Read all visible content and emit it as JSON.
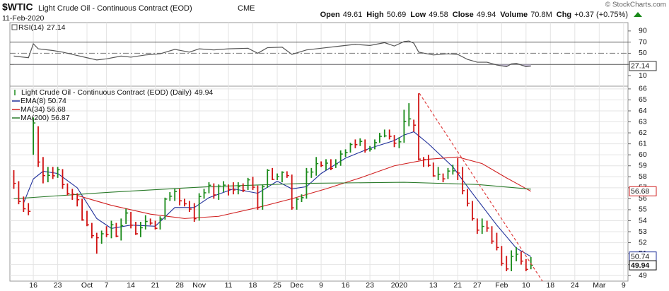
{
  "header": {
    "symbol": "$WTIC",
    "name": "Light Crude Oil - Continuous Contract (EOD)",
    "exchange": "CME",
    "date": "11-Feb-2020",
    "copyright": "© StockCharts.com",
    "quote": [
      {
        "label": "Open",
        "value": 49.61
      },
      {
        "label": "High",
        "value": 50.69
      },
      {
        "label": "Low",
        "value": 49.58
      },
      {
        "label": "Close",
        "value": 49.94
      },
      {
        "label": "Volume",
        "value": "70.8M"
      },
      {
        "label": "Chg",
        "value": "+0.37 (+0.75%)"
      }
    ]
  },
  "chart_data": [
    {
      "type": "line",
      "xlim": [
        -0.8,
        125.9
      ],
      "ylim": [
        -9,
        105
      ],
      "yticks": [
        90,
        70,
        50,
        30,
        10
      ],
      "solid_levels": [
        70,
        30
      ],
      "mid_level": 50,
      "oversold": 30,
      "shade_color": "#c8bfd8",
      "series": [
        {
          "name": "RSI(14)",
          "color": "#555555",
          "axis_label": true,
          "x": [
            0,
            3,
            4,
            5,
            8,
            10,
            13,
            15,
            17,
            19,
            22,
            24,
            27,
            30,
            33,
            36,
            38,
            41,
            44,
            48,
            50,
            52,
            55,
            57,
            60,
            63,
            67,
            70,
            73,
            76,
            78,
            80,
            81,
            82,
            83,
            86,
            89,
            91,
            93,
            95,
            97,
            99,
            101,
            102,
            103,
            104,
            105,
            106
          ],
          "values": [
            45,
            42,
            67,
            58,
            55,
            52,
            46,
            42,
            38,
            40,
            45,
            43,
            47,
            49,
            57,
            52,
            58,
            56,
            58,
            59,
            50,
            60,
            61,
            48,
            56,
            59,
            63,
            66,
            64,
            69,
            63,
            71,
            72,
            68,
            52,
            47,
            49,
            48,
            39,
            34,
            34,
            29,
            26,
            31,
            32,
            29,
            26,
            27.14
          ]
        }
      ]
    },
    {
      "type": "ohlc",
      "title": "Light Crude Oil - Continuous Contract (EOD) (Daily)",
      "xlim": [
        -0.8,
        125.9
      ],
      "ylim": [
        48.5,
        66.25
      ],
      "grid": true,
      "up_color": "#1a8a1a",
      "down_color": "#d01010",
      "yticks": [
        66,
        65,
        64,
        63,
        62,
        61,
        60,
        59,
        58,
        57,
        56,
        55,
        54,
        53,
        52,
        51,
        50,
        49
      ],
      "xticks": [
        {
          "value": 4,
          "label": "16"
        },
        {
          "value": 9,
          "label": "23"
        },
        {
          "value": 15,
          "label": "Oct"
        },
        {
          "value": 19,
          "label": "7"
        },
        {
          "value": 24,
          "label": "14"
        },
        {
          "value": 29,
          "label": "21"
        },
        {
          "value": 34,
          "label": "28"
        },
        {
          "value": 38,
          "label": "Nov"
        },
        {
          "value": 44,
          "label": "11"
        },
        {
          "value": 49,
          "label": "18"
        },
        {
          "value": 54,
          "label": "25"
        },
        {
          "value": 58,
          "label": "Dec"
        },
        {
          "value": 63,
          "label": "9"
        },
        {
          "value": 68,
          "label": "16"
        },
        {
          "value": 73,
          "label": "23"
        },
        {
          "value": 79,
          "label": "2020"
        },
        {
          "value": 86,
          "label": "13"
        },
        {
          "value": 91,
          "label": "21"
        },
        {
          "value": 95,
          "label": "27"
        },
        {
          "value": 100,
          "label": "Feb"
        },
        {
          "value": 105,
          "label": "10"
        },
        {
          "value": 110,
          "label": "18"
        },
        {
          "value": 115,
          "label": "24"
        },
        {
          "value": 120,
          "label": "Mar"
        },
        {
          "value": 125,
          "label": "9"
        }
      ],
      "high": [
        58.6,
        57.6,
        56.2,
        55.6,
        63.4,
        62.6,
        59.8,
        58.9,
        58.9,
        58.9,
        58.7,
        57.4,
        56.9,
        56.5,
        56.0,
        54.9,
        53.8,
        52.9,
        53.1,
        53.5,
        54.0,
        53.8,
        54.2,
        55.1,
        54.8,
        53.9,
        53.9,
        54.5,
        54.2,
        54.0,
        54.4,
        56.1,
        56.6,
        56.9,
        56.9,
        56.0,
        55.8,
        55.6,
        56.5,
        56.9,
        57.5,
        57.4,
        57.3,
        57.6,
        57.3,
        57.5,
        57.5,
        57.4,
        57.9,
        58.0,
        57.2,
        57.3,
        58.7,
        58.8,
        58.3,
        58.5,
        58.5,
        58.2,
        56.1,
        56.4,
        58.8,
        58.8,
        59.8,
        59.4,
        59.6,
        59.6,
        59.6,
        60.4,
        60.5,
        61.1,
        61.4,
        61.5,
        61.4,
        60.8,
        61.4,
        62.0,
        62.3,
        62.3,
        61.8,
        61.6,
        64.1,
        64.7,
        63.2,
        65.6,
        59.8,
        60.0,
        59.3,
        58.9,
        58.3,
        58.8,
        59.1,
        59.7,
        58.9,
        56.9,
        55.8,
        54.2,
        54.2,
        54.0,
        53.5,
        52.9,
        51.7,
        50.8,
        51.3,
        51.6,
        51.2,
        50.5,
        50.69
      ],
      "low": [
        56.9,
        55.5,
        54.8,
        54.5,
        60.0,
        58.9,
        57.4,
        57.5,
        57.8,
        57.9,
        56.9,
        56.3,
        55.9,
        55.3,
        54.0,
        53.5,
        52.4,
        51.0,
        51.9,
        52.5,
        52.4,
        52.5,
        52.2,
        53.7,
        53.3,
        52.7,
        52.5,
        53.2,
        53.6,
        53.2,
        53.2,
        54.1,
        55.8,
        55.8,
        55.4,
        55.3,
        54.8,
        53.9,
        54.0,
        56.0,
        56.5,
        56.0,
        55.9,
        56.6,
        56.3,
        56.4,
        56.4,
        56.6,
        56.8,
        56.8,
        55.0,
        55.0,
        57.0,
        57.7,
        57.7,
        57.5,
        57.9,
        55.0,
        55.0,
        55.7,
        56.0,
        57.9,
        58.1,
        58.9,
        58.6,
        58.6,
        58.8,
        59.0,
        59.8,
        60.2,
        60.6,
        60.8,
        60.2,
        60.3,
        60.5,
        61.1,
        61.6,
        61.4,
        60.7,
        60.6,
        61.1,
        62.6,
        62.1,
        59.5,
        58.9,
        58.9,
        58.0,
        57.7,
        57.5,
        57.8,
        58.2,
        57.7,
        56.4,
        55.3,
        54.0,
        52.8,
        52.8,
        53.0,
        51.9,
        51.3,
        49.9,
        49.4,
        49.4,
        50.3,
        50.0,
        49.4,
        49.58
      ],
      "close": [
        57.4,
        55.75,
        55.09,
        54.85,
        62.9,
        59.34,
        58.11,
        58.13,
        58.09,
        58.64,
        57.29,
        56.49,
        56.41,
        55.91,
        54.07,
        53.62,
        52.64,
        52.45,
        52.81,
        52.75,
        53.63,
        52.59,
        53.55,
        54.7,
        53.59,
        52.81,
        53.36,
        53.93,
        53.78,
        53.31,
        54.16,
        55.97,
        56.23,
        56.66,
        55.81,
        55.54,
        55.06,
        54.18,
        56.2,
        56.54,
        57.23,
        56.35,
        57.15,
        57.24,
        56.86,
        56.8,
        57.12,
        56.77,
        57.72,
        57.05,
        55.21,
        57.11,
        58.58,
        57.77,
        58.01,
        58.41,
        58.11,
        55.17,
        55.96,
        56.1,
        58.43,
        58.43,
        59.2,
        59.02,
        59.24,
        58.76,
        59.18,
        60.07,
        60.21,
        60.94,
        60.93,
        61.22,
        60.44,
        60.52,
        61.11,
        61.68,
        61.72,
        61.68,
        61.06,
        61.18,
        63.05,
        63.27,
        62.7,
        59.61,
        59.56,
        59.04,
        58.08,
        58.23,
        57.81,
        58.52,
        58.54,
        58.34,
        56.74,
        55.59,
        54.19,
        53.14,
        53.48,
        53.33,
        52.14,
        51.56,
        50.11,
        49.61,
        50.75,
        50.95,
        50.32,
        49.57,
        49.94
      ],
      "series": [
        {
          "name": "EMA(8)",
          "color": "#1f2f9a",
          "axis_label": true,
          "x": [
            2,
            4,
            6,
            9,
            13,
            17,
            20,
            24,
            29,
            33,
            37,
            40,
            45,
            50,
            54,
            57,
            60,
            63,
            68,
            73,
            78,
            80,
            82,
            85,
            90,
            94,
            99,
            103,
            106
          ],
          "values": [
            55.6,
            57.8,
            58.5,
            58.3,
            57.0,
            54.2,
            53.3,
            53.6,
            53.5,
            55.2,
            55.2,
            56.1,
            56.9,
            56.5,
            57.6,
            56.9,
            57.1,
            58.3,
            59.7,
            60.6,
            61.3,
            61.8,
            62.1,
            61.0,
            58.9,
            56.5,
            53.6,
            51.5,
            50.74
          ]
        },
        {
          "name": "MA(34)",
          "color": "#d02020",
          "axis_label": true,
          "x": [
            13,
            20,
            28,
            35,
            42,
            50,
            57,
            64,
            71,
            78,
            85,
            91,
            96,
            101,
            106
          ],
          "values": [
            56.3,
            55.4,
            54.6,
            54.2,
            54.4,
            55.2,
            56.0,
            56.9,
            57.9,
            59.0,
            59.6,
            59.8,
            59.2,
            57.9,
            56.68
          ]
        },
        {
          "name": "MA(200)",
          "color": "#2a7a2a",
          "axis_label": false,
          "x": [
            0,
            20,
            40,
            60,
            80,
            95,
            106
          ],
          "values": [
            56.0,
            56.6,
            57.1,
            57.4,
            57.5,
            57.3,
            56.87
          ]
        }
      ]
    }
  ]
}
